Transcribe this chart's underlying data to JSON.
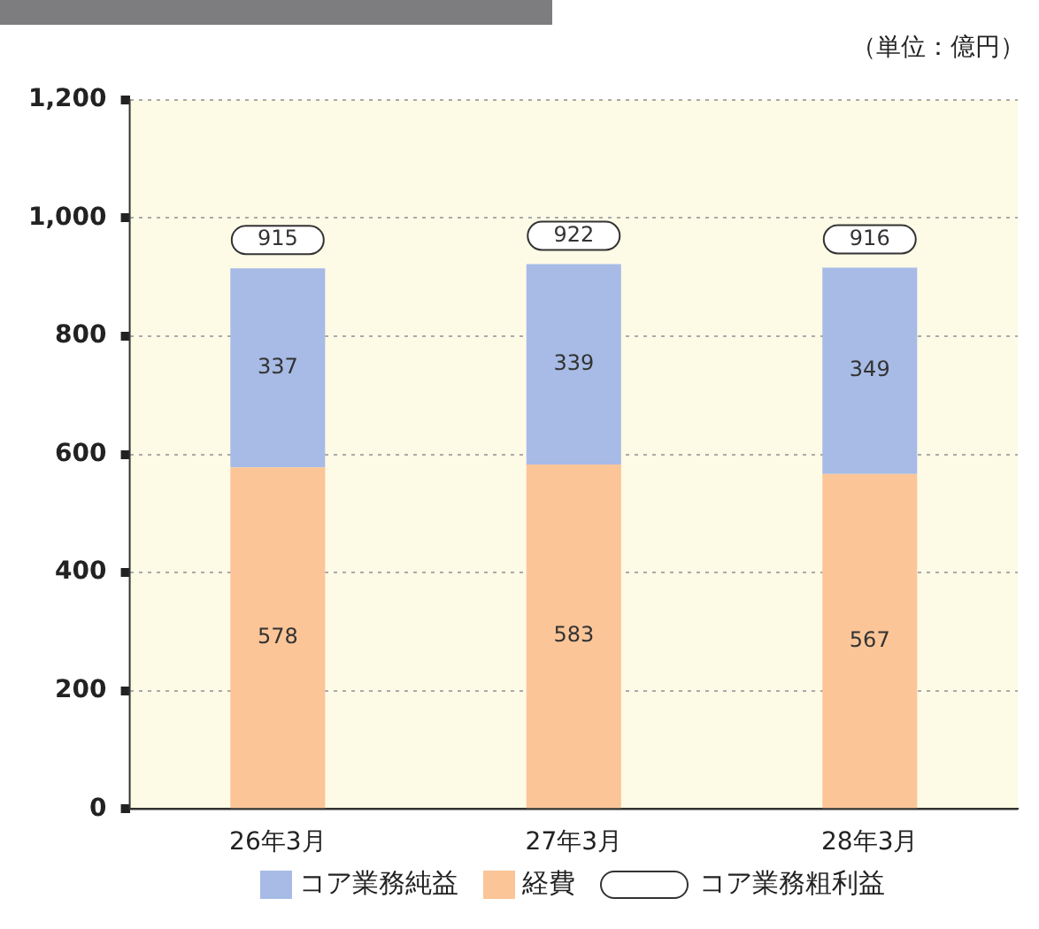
{
  "chart_data": {
    "type": "bar",
    "stacked": true,
    "categories": [
      "26年3月",
      "27年3月",
      "28年3月"
    ],
    "series": [
      {
        "name": "経費",
        "color": "#fbc598",
        "values": [
          578,
          583,
          567
        ]
      },
      {
        "name": "コア業務純益",
        "color": "#a7bbe6",
        "values": [
          337,
          339,
          349
        ]
      }
    ],
    "totals": [
      "915",
      "922",
      "916"
    ],
    "ylim": [
      0,
      1200
    ],
    "yticks": [
      0,
      {
        "value": 200,
        "label": "200"
      },
      {
        "value": 400,
        "label": "400"
      },
      {
        "value": 600,
        "label": "600"
      },
      {
        "value": 800,
        "label": "800"
      },
      {
        "value": 1000,
        "label": "1,000"
      },
      {
        "value": 1200,
        "label": "1,200"
      }
    ],
    "grid": "y",
    "data_labels": true,
    "legend": "bottom",
    "annotations": [
      "（単位：億円）",
      "コア業務粗利益"
    ]
  }
}
